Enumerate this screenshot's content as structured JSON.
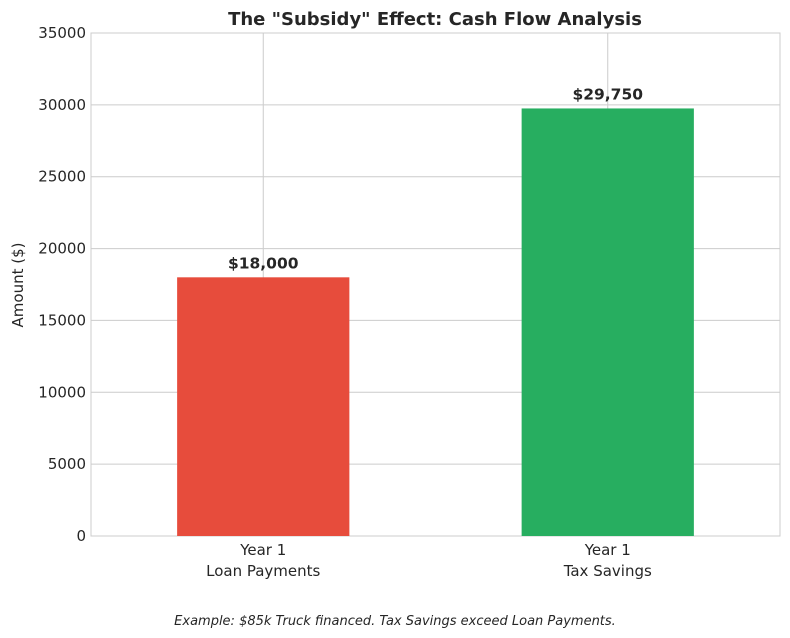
{
  "chart_data": {
    "type": "bar",
    "title": "The \"Subsidy\" Effect: Cash Flow Analysis",
    "xlabel": "",
    "ylabel": "Amount ($)",
    "ylim": [
      0,
      35000
    ],
    "yticks": [
      0,
      5000,
      10000,
      15000,
      20000,
      25000,
      30000,
      35000
    ],
    "categories": [
      [
        "Year 1",
        "Loan Payments"
      ],
      [
        "Year 1",
        "Tax Savings"
      ]
    ],
    "values": [
      18000,
      29750
    ],
    "value_labels": [
      "$18,000",
      "$29,750"
    ],
    "colors": [
      "#e74c3c",
      "#27ae60"
    ],
    "grid": true,
    "footnote": "Example: $85k Truck financed. Tax Savings exceed Loan Payments."
  }
}
